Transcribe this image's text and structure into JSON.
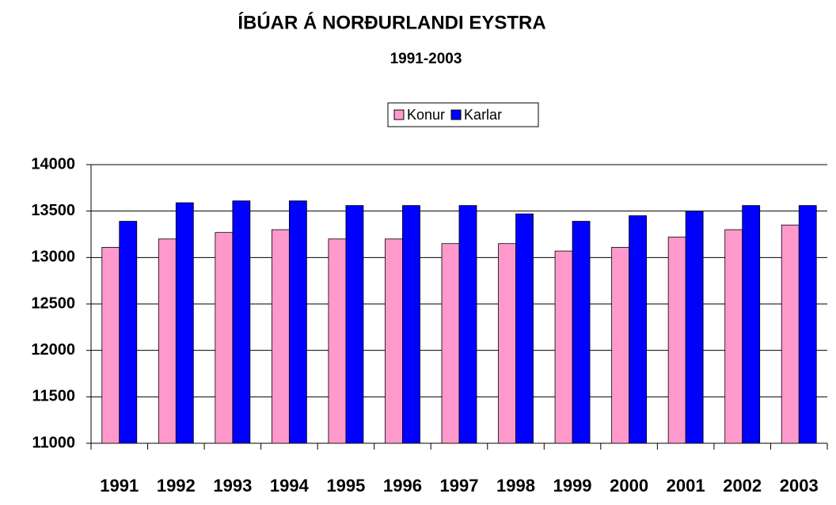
{
  "chart_data": {
    "type": "bar",
    "title": "ÍBÚAR Á NORÐURLANDI EYSTRA",
    "subtitle": "1991-2003",
    "categories": [
      "1991",
      "1992",
      "1993",
      "1994",
      "1995",
      "1996",
      "1997",
      "1998",
      "1999",
      "2000",
      "2001",
      "2002",
      "2003"
    ],
    "series": [
      {
        "name": "Konur",
        "color": "#ff99cc",
        "values": [
          13110,
          13200,
          13270,
          13300,
          13200,
          13200,
          13150,
          13150,
          13070,
          13110,
          13220,
          13300,
          13350
        ]
      },
      {
        "name": "Karlar",
        "color": "#0000ff",
        "values": [
          13390,
          13590,
          13610,
          13610,
          13560,
          13560,
          13560,
          13470,
          13390,
          13450,
          13500,
          13560,
          13560
        ]
      }
    ],
    "ylim": [
      11000,
      14000
    ],
    "yticks": [
      11000,
      11500,
      12000,
      12500,
      13000,
      13500,
      14000
    ],
    "grid": true,
    "legend": "top"
  }
}
